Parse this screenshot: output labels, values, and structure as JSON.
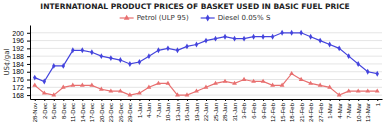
{
  "chart_data": {
    "type": "line",
    "title": "INTERNATIONAL PRODUCT PRICES OF BASKET USED IN BASIC FUEL PRICE",
    "ylabel": "US¢/gal",
    "categories": [
      "28-Nov",
      "2-Dec",
      "5-Dec",
      "8-Dec",
      "11-Dec",
      "14-Dec",
      "17-Dec",
      "20-Dec",
      "23-Dec",
      "26-Dec",
      "29-Dec",
      "1-Jan",
      "4-Jan",
      "7-Jan",
      "10-Jan",
      "13-Jan",
      "16-Jan",
      "19-Jan",
      "22-Jan",
      "25-Jan",
      "28-Jan",
      "31-Jan",
      "3-Feb",
      "6-Feb",
      "9-Feb",
      "12-Feb",
      "15-Feb",
      "18-Feb",
      "21-Feb",
      "24-Feb",
      "27-Feb",
      "1-Mar",
      "4-Mar",
      "7-Mar",
      "10-Mar",
      "13-Mar",
      "1"
    ],
    "series": [
      {
        "name": "Petrol (ULP 95)",
        "color": "#e87070",
        "marker": "triangle",
        "line_style": "solid",
        "values": [
          173,
          169,
          168,
          172,
          173,
          173,
          173,
          171,
          170,
          170,
          168,
          169,
          172,
          174,
          174,
          168,
          168,
          170,
          172,
          174,
          175,
          174,
          176,
          175,
          175,
          173,
          173,
          179,
          176,
          174,
          173,
          172,
          168,
          170,
          170,
          170,
          170
        ]
      },
      {
        "name": "Diesel 0.05% S",
        "color": "#4444dd",
        "marker": "diamond",
        "line_style": "solid",
        "values": [
          177,
          175,
          183,
          183,
          191,
          191,
          190,
          188,
          187,
          186,
          184,
          185,
          188,
          191,
          192,
          191,
          193,
          194,
          196,
          197,
          198,
          197,
          197,
          198,
          198,
          198,
          200,
          200,
          200,
          198,
          196,
          194,
          192,
          188,
          184,
          180,
          179
        ]
      }
    ],
    "ylim": [
      166,
      204
    ],
    "yticks": [
      168,
      172,
      176,
      180,
      184,
      188,
      192,
      196,
      200
    ],
    "grid": true,
    "legend": "top"
  }
}
